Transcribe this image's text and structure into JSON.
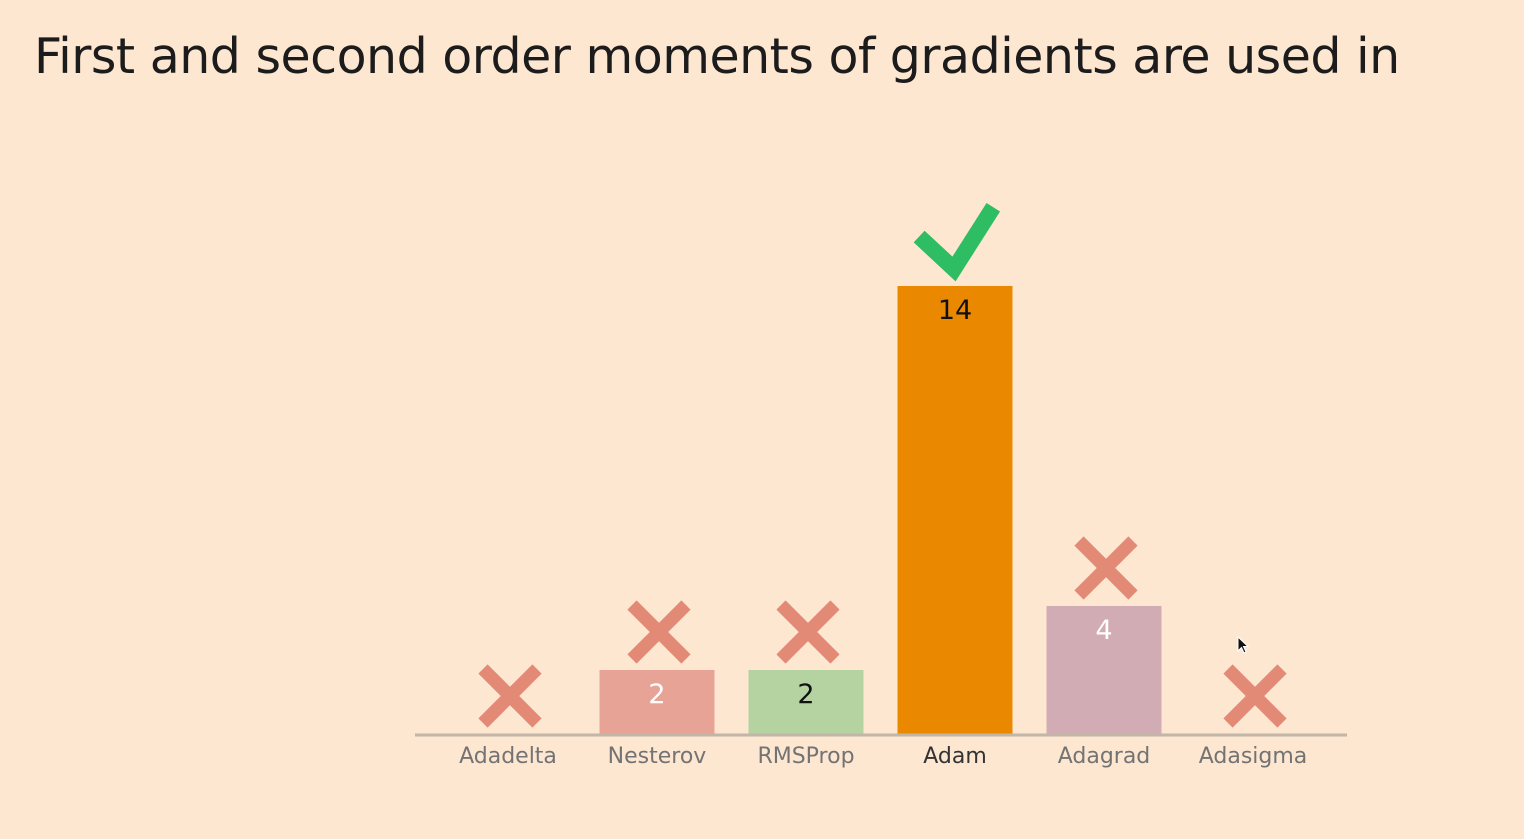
{
  "question": {
    "title": "First and second order moments of gradients are used in"
  },
  "chart_data": {
    "type": "bar",
    "categories": [
      "Adadelta",
      "Nesterov",
      "RMSProp",
      "Adam",
      "Adagrad",
      "Adasigma"
    ],
    "values": [
      0,
      2,
      2,
      14,
      4,
      0
    ],
    "data_labels": [
      "",
      "2",
      "2",
      "14",
      "4",
      ""
    ],
    "correct": [
      false,
      false,
      false,
      true,
      false,
      false
    ],
    "ylim": [
      0,
      14
    ],
    "grid": false,
    "legend": "none",
    "colors": {
      "bars": [
        "#e6a396",
        "#e6a396",
        "#b5d3a1",
        "#ea8900",
        "#d2acb4",
        "#e6a396"
      ],
      "label_text": [
        "#ffffff",
        "#ffffff",
        "#111111",
        "#111111",
        "#ffffff",
        "#ffffff"
      ],
      "wrong_mark": "#e38a77",
      "correct_mark": "#2ebd62",
      "baseline": "#c2b6a8",
      "category_text": "#737373",
      "category_text_correct": "#333333"
    }
  }
}
